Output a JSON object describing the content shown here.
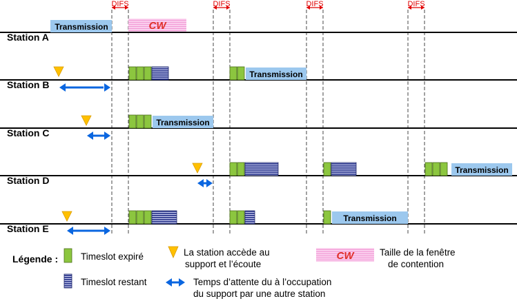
{
  "difs_label": "DIFS",
  "stations": [
    {
      "label": "Station A"
    },
    {
      "label": "Station B"
    },
    {
      "label": "Station C"
    },
    {
      "label": "Station D"
    },
    {
      "label": "Station E"
    }
  ],
  "transmission_label": "Transmission",
  "cw_label": "CW",
  "legend": {
    "title": "Légende :",
    "expired": "Timeslot expiré",
    "remaining": "Timeslot restant",
    "access_line1": "La station accède au",
    "access_line2": "support et l’écoute",
    "wait_line1": "Temps d’attente du à l’occupation",
    "wait_line2": "du support par une autre station",
    "cw_desc_line1": "Taille de la fenêtre",
    "cw_desc_line2": "de contention"
  },
  "colors": {
    "transmission": "#9cc8ee",
    "expired": "#8cc63f",
    "remaining": "#2f3a8f",
    "cw_fill": "#f9c8ea",
    "arrow": "#0a66e0",
    "access": "#ffc000",
    "difs": "#e00000"
  }
}
